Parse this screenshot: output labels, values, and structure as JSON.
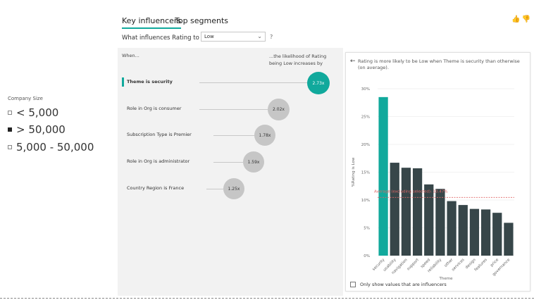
{
  "slicer": {
    "title": "Company Size",
    "items": [
      {
        "label": "< 5,000",
        "checked": false
      },
      {
        "label": "> 50,000",
        "checked": true
      },
      {
        "label": "5,000 - 50,000",
        "checked": false
      }
    ]
  },
  "tabs": [
    {
      "label": "Key influencers",
      "active": true
    },
    {
      "label": "Top segments",
      "active": false
    }
  ],
  "header_icons": {
    "like": "thumbs-up-icon",
    "dislike": "thumbs-down-icon",
    "glyphs": "👍👎"
  },
  "question": {
    "prefix": "What influences Rating to be",
    "selected": "Low",
    "help": "?"
  },
  "influencers": {
    "when_label": "When...",
    "likely_label": "...the likelihood of Rating being Low increases by",
    "items": [
      {
        "label": "Theme is security",
        "value": "2.73x",
        "selected": true
      },
      {
        "label": "Role in Org is consumer",
        "value": "2.02x",
        "selected": false
      },
      {
        "label": "Subscription Type is Premier",
        "value": "1.78x",
        "selected": false
      },
      {
        "label": "Role in Org is administrator",
        "value": "1.59x",
        "selected": false
      },
      {
        "label": "Country Region is France",
        "value": "1.25x",
        "selected": false
      }
    ]
  },
  "detail": {
    "description": "Rating is more likely to be Low when Theme is security than otherwise (on average).",
    "checkbox_label": "Only show values that are influencers",
    "checkbox_checked": false
  },
  "chart_data": {
    "type": "bar",
    "xlabel": "Theme",
    "ylabel": "%Rating is Low",
    "ylim": [
      0,
      30
    ],
    "yticks": [
      0,
      5,
      10,
      15,
      20,
      25,
      30
    ],
    "ytick_labels": [
      "0%",
      "5%",
      "10%",
      "15%",
      "20%",
      "25%",
      "30%"
    ],
    "categories": [
      "security",
      "usability",
      "navigation",
      "support",
      "speed",
      "reliability",
      "other",
      "services",
      "design",
      "features",
      "price",
      "governance"
    ],
    "values": [
      28.5,
      16.7,
      15.8,
      15.7,
      12.8,
      12.0,
      9.8,
      9.1,
      8.4,
      8.3,
      7.7,
      5.9
    ],
    "highlight_index": 0,
    "highlight_color": "#11a99c",
    "bar_color": "#374649",
    "average": {
      "label": "Average (excluding selected): 10.47%",
      "value": 10.47,
      "color": "#e06666"
    },
    "grid": true
  }
}
